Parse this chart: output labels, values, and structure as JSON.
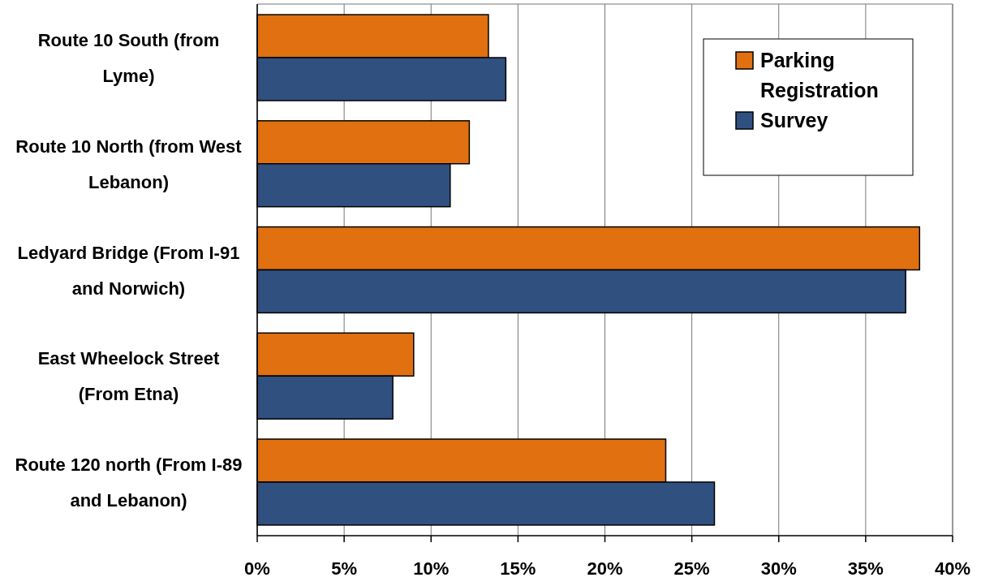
{
  "chart_data": {
    "type": "bar",
    "orientation": "horizontal",
    "categories": [
      "Route 10 South (from Lyme)",
      "Route 10 North (from West Lebanon)",
      "Ledyard Bridge (From I-91 and Norwich)",
      "East Wheelock Street (From Etna)",
      "Route 120 north (From I-89 and Lebanon)"
    ],
    "series": [
      {
        "name": "Parking Registration",
        "color": "#e07010",
        "values": [
          13.3,
          12.2,
          38.1,
          9.0,
          23.5
        ]
      },
      {
        "name": "Survey",
        "color": "#30507f",
        "values": [
          14.3,
          11.1,
          37.3,
          7.8,
          26.3
        ]
      }
    ],
    "xlim": [
      0,
      40
    ],
    "xticks": [
      {
        "value": 0,
        "label": "0%"
      },
      {
        "value": 5,
        "label": "5%"
      },
      {
        "value": 10,
        "label": "10%"
      },
      {
        "value": 15,
        "label": "15%"
      },
      {
        "value": 20,
        "label": "20%"
      },
      {
        "value": 25,
        "label": "25%"
      },
      {
        "value": 30,
        "label": "30%"
      },
      {
        "value": 35,
        "label": "35%"
      },
      {
        "value": 40,
        "label": "40%"
      }
    ],
    "grid": "x",
    "legend": "top right"
  }
}
